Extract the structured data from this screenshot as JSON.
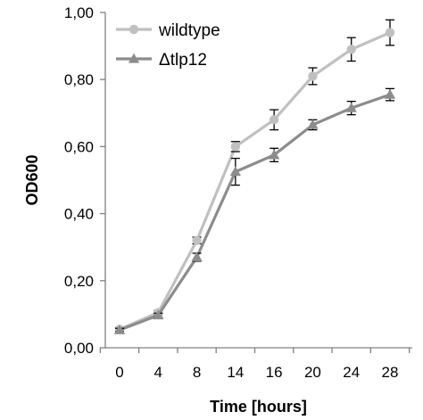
{
  "chart_data": {
    "type": "line",
    "title": "",
    "xlabel": "Time [hours]",
    "ylabel": "OD600",
    "categories": [
      "0",
      "4",
      "8",
      "14",
      "16",
      "20",
      "24",
      "28"
    ],
    "y_ticks": [
      "0,00",
      "0,20",
      "0,40",
      "0,60",
      "0,80",
      "1,00"
    ],
    "ylim": [
      0,
      1
    ],
    "grid": false,
    "legend_position": "top-left",
    "error_bars": true,
    "series": [
      {
        "name": "wildtype",
        "marker": "circle",
        "color": "#c0c0c0",
        "values": [
          0.055,
          0.105,
          0.32,
          0.6,
          0.68,
          0.81,
          0.89,
          0.94
        ],
        "errors": [
          0.005,
          0.006,
          0.01,
          0.015,
          0.03,
          0.025,
          0.035,
          0.038
        ]
      },
      {
        "name": "Δtlp12",
        "marker": "triangle",
        "color": "#8c8c8c",
        "values": [
          0.053,
          0.097,
          0.27,
          0.525,
          0.575,
          0.665,
          0.715,
          0.755
        ],
        "errors": [
          0.005,
          0.006,
          0.012,
          0.04,
          0.02,
          0.015,
          0.02,
          0.018
        ]
      }
    ]
  }
}
